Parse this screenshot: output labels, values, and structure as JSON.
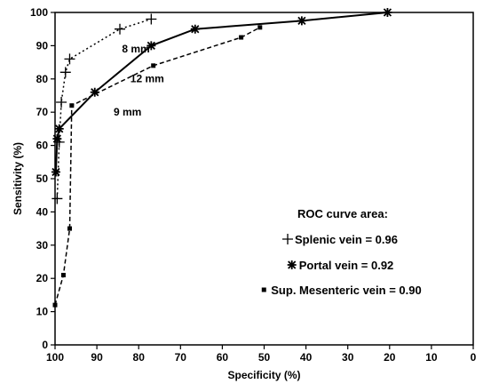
{
  "chart_data": {
    "type": "line",
    "xlabel": "Specificity (%)",
    "ylabel": "Sensitivity (%)",
    "xlim": [
      100,
      0
    ],
    "ylim": [
      0,
      100
    ],
    "x_reversed": true,
    "x_ticks": [
      100,
      90,
      80,
      70,
      60,
      50,
      40,
      30,
      20,
      10,
      0
    ],
    "y_ticks": [
      0,
      10,
      20,
      30,
      40,
      50,
      60,
      70,
      80,
      90,
      100
    ],
    "grid": false,
    "legend_position": "bottom-right",
    "legend_title": "ROC curve area:",
    "series": [
      {
        "name": "Splenic vein = 0.96",
        "marker": "+",
        "line_style": "dotted",
        "x": [
          99.5,
          99,
          98.5,
          97.5,
          96.5,
          84.5,
          77
        ],
        "y": [
          44,
          61,
          73,
          82,
          86,
          95,
          98
        ]
      },
      {
        "name": "Portal vein = 0.92",
        "marker": "*",
        "line_style": "solid",
        "x": [
          99.8,
          99.5,
          99,
          90.5,
          77,
          66.5,
          41,
          20.5
        ],
        "y": [
          52,
          62,
          65,
          76,
          90,
          95,
          97.5,
          100
        ]
      },
      {
        "name": "Sup. Mesenteric vein = 0.90",
        "marker": "square",
        "line_style": "dashed",
        "x": [
          100,
          98,
          96.5,
          96,
          76.5,
          55.5,
          51
        ],
        "y": [
          12,
          21,
          35,
          72,
          84,
          92.5,
          95.5
        ]
      }
    ],
    "annotations": [
      {
        "text": "8 mm",
        "x": 84,
        "y": 88
      },
      {
        "text": "12 mm",
        "x": 82,
        "y": 79
      },
      {
        "text": "9 mm",
        "x": 86,
        "y": 69
      }
    ]
  }
}
